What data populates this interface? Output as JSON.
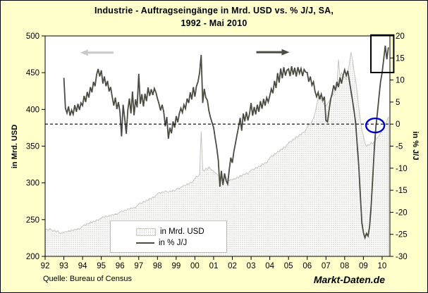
{
  "page": {
    "title_line1": "Industrie - Auftragseingänge in Mrd. USD vs. % J/J, SA,",
    "title_line2": "1992 - Mai 2010",
    "source": "Quelle: Bureau of Census",
    "watermark": "Markt-Daten.de"
  },
  "legend": {
    "items": [
      {
        "label": "in Mrd. USD",
        "swatch": "dotted-area"
      },
      {
        "label": "in % J/J",
        "swatch": "dark-line"
      }
    ]
  },
  "colors": {
    "background": "#FFFFCC",
    "plot_background": "#FFFFFF",
    "axis": "#000000",
    "line_series": "#4B4B41",
    "area_dot": "#C3C3BB",
    "area_edge": "#C4C4BC",
    "arrow_left": "#C9C9C9",
    "arrow_right": "#4B4B41",
    "ellipse_annotation": "#0000CC",
    "rect_annotation": "#000000"
  },
  "chart_data": {
    "type": "combo-area-line",
    "title": "Industrie - Auftragseingänge in Mrd. USD vs. % J/J, SA, 1992 - Mai 2010",
    "x_axis": {
      "range": [
        1992,
        2010.4167
      ],
      "tick_values": [
        1992,
        1993,
        1994,
        1995,
        1996,
        1997,
        1998,
        1999,
        2000,
        2001,
        2002,
        2003,
        2004,
        2005,
        2006,
        2007,
        2008,
        2009,
        2010
      ],
      "tick_labels": [
        "92",
        "93",
        "94",
        "95",
        "96",
        "97",
        "98",
        "99",
        "00",
        "01",
        "02",
        "03",
        "04",
        "05",
        "06",
        "07",
        "08",
        "09",
        "10"
      ]
    },
    "left_axis": {
      "label": "in Mrd. USD",
      "range": [
        200,
        500
      ],
      "ticks": [
        200,
        250,
        300,
        350,
        400,
        450,
        500
      ]
    },
    "right_axis": {
      "label": "in % J/J",
      "range": [
        -30,
        20
      ],
      "ticks": [
        20,
        15,
        10,
        5,
        0,
        -5,
        -10,
        -15,
        -20,
        -25,
        -30
      ]
    },
    "zero_line": {
      "axis": "right",
      "value": 0,
      "style": "dashed"
    },
    "series": [
      {
        "name": "in Mrd. USD",
        "type": "area",
        "axis": "left",
        "x_start": 1992.0,
        "x_step_months": 1,
        "values": [
          236,
          237,
          235,
          238,
          236,
          234,
          236,
          233,
          235,
          232,
          231,
          233,
          232,
          234,
          233,
          235,
          234,
          236,
          235,
          237,
          236,
          238,
          237,
          239,
          241,
          243,
          242,
          245,
          244,
          247,
          246,
          248,
          247,
          250,
          249,
          251,
          252,
          254,
          253,
          255,
          254,
          256,
          255,
          257,
          256,
          258,
          257,
          259,
          260,
          262,
          261,
          263,
          262,
          265,
          264,
          266,
          265,
          267,
          266,
          269,
          271,
          273,
          272,
          275,
          274,
          277,
          276,
          279,
          278,
          281,
          280,
          283,
          285,
          287,
          286,
          288,
          287,
          289,
          288,
          287,
          289,
          288,
          290,
          289,
          291,
          293,
          292,
          294,
          295,
          297,
          296,
          299,
          298,
          301,
          300,
          303,
          306,
          309,
          308,
          312,
          370,
          318,
          316,
          320,
          318,
          322,
          319,
          317,
          316,
          314,
          312,
          310,
          308,
          306,
          305,
          307,
          304,
          306,
          303,
          305,
          304,
          306,
          305,
          308,
          307,
          310,
          309,
          312,
          311,
          314,
          312,
          315,
          317,
          319,
          318,
          321,
          320,
          323,
          322,
          326,
          325,
          328,
          327,
          331,
          334,
          337,
          336,
          340,
          339,
          343,
          342,
          346,
          345,
          349,
          348,
          352,
          354,
          357,
          356,
          360,
          359,
          363,
          362,
          366,
          365,
          369,
          368,
          372,
          376,
          380,
          379,
          384,
          388,
          395,
          405,
          415,
          419,
          414,
          409,
          407,
          405,
          408,
          411,
          415,
          418,
          422,
          426,
          430,
          468,
          444,
          450,
          446,
          444,
          440,
          452,
          462,
          478,
          468,
          452,
          440,
          424,
          404,
          386,
          372,
          364,
          354,
          350,
          352,
          351,
          355,
          353,
          357,
          359,
          362,
          364,
          368,
          371,
          375,
          379,
          384,
          390
        ]
      },
      {
        "name": "in % J/J",
        "type": "line",
        "axis": "right",
        "x_start": 1993.0,
        "x_step_months": 1,
        "values": [
          10.5,
          3.6,
          2.5,
          4.0,
          1.9,
          3.2,
          2.2,
          4.3,
          2.8,
          4.6,
          3.2,
          4.8,
          4.2,
          6.4,
          5.0,
          7.3,
          6.0,
          8.4,
          7.2,
          9.6,
          8.6,
          11.2,
          12.5,
          10.8,
          12.2,
          9.2,
          10.8,
          8.6,
          9.8,
          7.4,
          8.4,
          6.2,
          4.2,
          6.0,
          3.4,
          5.0,
          2.6,
          -2.8,
          4.4,
          1.4,
          -2.2,
          3.2,
          5.8,
          2.4,
          7.4,
          2.0,
          5.6,
          3.8,
          11.4,
          4.6,
          6.8,
          4.0,
          6.9,
          5.2,
          8.3,
          6.4,
          7.9,
          6.6,
          8.1,
          7.2,
          5.8,
          4.6,
          3.1,
          4.4,
          2.8,
          -0.5,
          1.6,
          -3.3,
          -0.8,
          -2.1,
          0.6,
          -0.8,
          1.8,
          0.4,
          2.4,
          3.6,
          2.6,
          4.4,
          3.5,
          5.8,
          4.8,
          7.2,
          5.6,
          8.4,
          6.2,
          8.6,
          9.6,
          11.7,
          15.7,
          4.8,
          8.0,
          6.0,
          5.4,
          3.0,
          1.5,
          0.3,
          -0.8,
          -3.2,
          -5.4,
          -8.2,
          -14.2,
          -10.6,
          -13.8,
          -11.2,
          -12.8,
          -13.6,
          -10.4,
          -7.6,
          -8.8,
          -6.2,
          -4.4,
          -2.4,
          -0.6,
          1.4,
          -1.5,
          2.4,
          0.6,
          2.8,
          0.8,
          2.4,
          4.8,
          1.9,
          3.9,
          2.2,
          4.4,
          2.8,
          5.2,
          3.5,
          5.7,
          4.2,
          6.0,
          5.0,
          6.4,
          8.0,
          7.0,
          9.8,
          8.2,
          11.6,
          9.4,
          12.6,
          10.4,
          12.9,
          11.0,
          12.2,
          12.5,
          10.9,
          13.1,
          11.2,
          12.8,
          10.8,
          12.9,
          11.5,
          12.6,
          10.9,
          12.4,
          11.8,
          11.7,
          9.6,
          10.8,
          8.8,
          9.6,
          7.4,
          6.2,
          7.2,
          5.6,
          6.8,
          5.4,
          6.2,
          0.8,
          0.5,
          3.2,
          5.6,
          7.0,
          8.8,
          7.6,
          9.6,
          8.4,
          10.6,
          9.2,
          11.0,
          12.3,
          11.0,
          12.1,
          9.8,
          7.6,
          5.4,
          3.0,
          0.4,
          -4.5,
          -9.2,
          -16.0,
          -22.4,
          -24.6,
          -25.8,
          -24.8,
          -25.4,
          -23.2,
          -18.5,
          -12.0,
          -5.5,
          -0.6,
          2.6,
          6.2,
          9.6,
          11.6,
          14.6,
          17.8,
          14.7,
          17.4
        ]
      }
    ],
    "annotations": {
      "rect": {
        "x1": 2009.4,
        "x2": 2010.62,
        "y1_pct": 11.7,
        "y2_pct": 20.2
      },
      "ellipse": {
        "cx": 2009.63,
        "cy_pct": -0.3,
        "rx_years": 0.49,
        "ry_pct": 1.6
      },
      "arrow_left": {
        "x_from": 1995.65,
        "x_to": 1993.88,
        "y_pct": 16.2
      },
      "arrow_right": {
        "x_from": 2003.28,
        "x_to": 2005.05,
        "y_pct": 16.3
      }
    }
  }
}
